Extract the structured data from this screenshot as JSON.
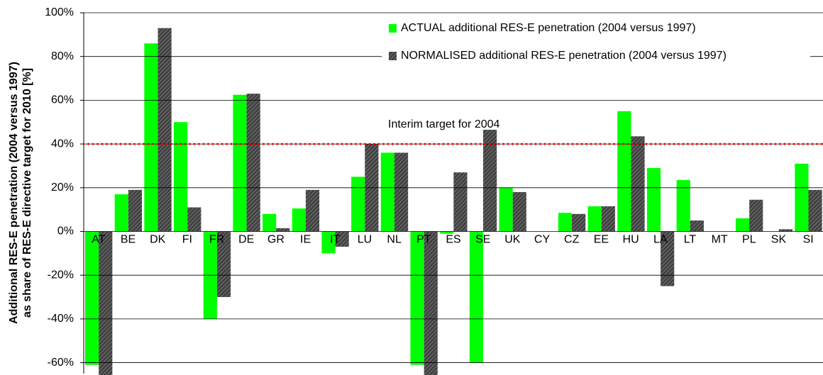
{
  "chart_data": {
    "type": "bar",
    "y_label": [
      "Additional RES-E penetration (2004 versus 1997)",
      "as share of RES-E directive target for 2010 [%]"
    ],
    "categories": [
      "AT",
      "BE",
      "DK",
      "FI",
      "FR",
      "DE",
      "GR",
      "IE",
      "IT",
      "LU",
      "NL",
      "PT",
      "ES",
      "SE",
      "UK",
      "CY",
      "CZ",
      "EE",
      "HU",
      "LA",
      "LT",
      "MT",
      "PL",
      "SK",
      "SI"
    ],
    "series": [
      {
        "name": "ACTUAL additional RES-E penetration (2004 versus 1997)",
        "color": "#00ff00",
        "values": [
          -61,
          17,
          86,
          50,
          -40,
          62.5,
          8,
          10.5,
          -10,
          25,
          36,
          -61,
          -1,
          -60,
          20,
          0,
          8.5,
          11.5,
          55,
          29,
          23.5,
          0,
          6,
          0,
          31
        ]
      },
      {
        "name": "NORMALISED additional RES-E penetration (2004 versus 1997)",
        "color": "#404040",
        "values": [
          -66,
          19,
          93,
          11,
          -30,
          63,
          1.5,
          19,
          -7,
          40,
          36,
          -66,
          27,
          46.5,
          18,
          0,
          8,
          11.5,
          43.5,
          -25,
          5,
          0,
          14.5,
          1,
          19
        ]
      }
    ],
    "target": 40,
    "target_label": "Interim target for 2004",
    "target_color": "#ff0000",
    "ylim": [
      -65,
      100
    ],
    "yticks": [
      {
        "value": -60,
        "label": "-60%"
      },
      {
        "value": -40,
        "label": "-40%"
      },
      {
        "value": -20,
        "label": "-20%"
      },
      {
        "value": 0,
        "label": "0%"
      },
      {
        "value": 20,
        "label": "20%"
      },
      {
        "value": 40,
        "label": "40%"
      },
      {
        "value": 60,
        "label": "60%"
      },
      {
        "value": 80,
        "label": "80%"
      },
      {
        "value": 100,
        "label": "100%"
      }
    ],
    "grid": true
  }
}
